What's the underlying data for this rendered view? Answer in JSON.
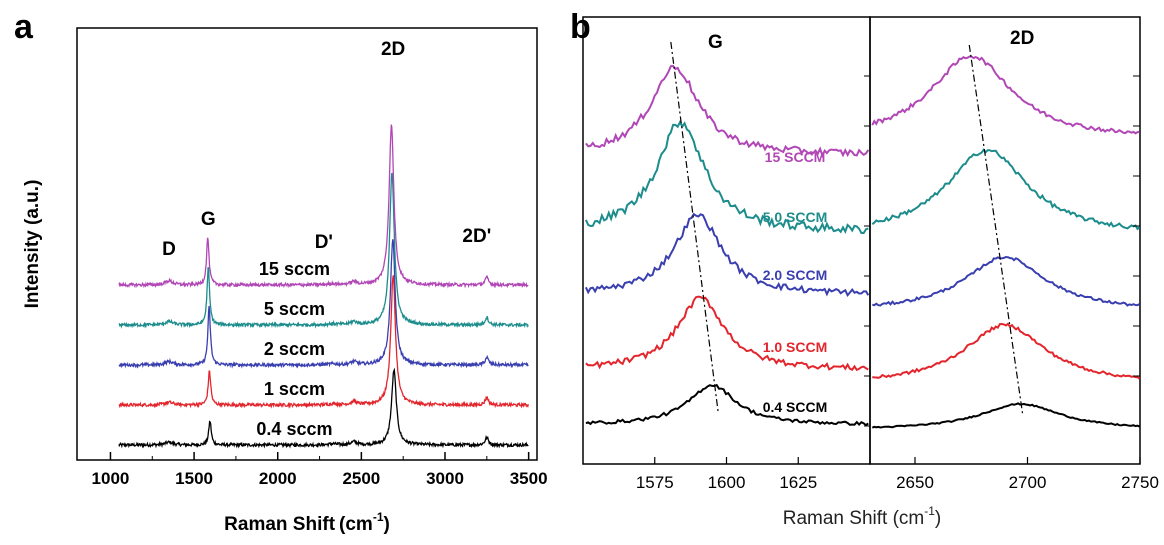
{
  "figure": {
    "panel_a_letter": "a",
    "panel_b_letter": "b"
  },
  "chart_data": [
    {
      "type": "line",
      "panel": "a",
      "xlabel": "Raman Shift",
      "xlabel_unit": "(cm",
      "xlabel_unit_sup": "-1",
      "xlabel_unit_close": ")",
      "ylabel": "Intensity (a.u.)",
      "xlim": [
        800,
        3550
      ],
      "x_ticks": [
        "1000",
        "1500",
        "2000",
        "2500",
        "3000",
        "3500"
      ],
      "x_tick_values": [
        1000,
        1500,
        2000,
        2500,
        3000,
        3500
      ],
      "y_ticks": "none",
      "grid": false,
      "peak_labels": [
        {
          "text": "D",
          "x": 1350
        },
        {
          "text": "G",
          "x": 1585
        },
        {
          "text": "D'",
          "x": 2455
        },
        {
          "text": "2D",
          "x": 2690
        },
        {
          "text": "2D'",
          "x": 3250
        }
      ],
      "series": [
        {
          "name": "15 sccm",
          "color": "#b147b6",
          "offset": 4,
          "G_intensity": 1.4,
          "G_pos": 1582,
          "TwoD_intensity": 4.7,
          "TwoD_pos": 2680,
          "D_intensity": 0.12
        },
        {
          "name": "5 sccm",
          "color": "#1d8c8c",
          "offset": 3,
          "G_intensity": 1.7,
          "G_pos": 1585,
          "TwoD_intensity": 4.5,
          "TwoD_pos": 2683,
          "D_intensity": 0.1
        },
        {
          "name": "2 sccm",
          "color": "#3a3fb0",
          "offset": 2,
          "G_intensity": 1.7,
          "G_pos": 1590,
          "TwoD_intensity": 3.7,
          "TwoD_pos": 2688,
          "D_intensity": 0.1
        },
        {
          "name": "1 sccm",
          "color": "#e3262d",
          "offset": 1,
          "G_intensity": 1.0,
          "G_pos": 1592,
          "TwoD_intensity": 3.8,
          "TwoD_pos": 2690,
          "D_intensity": 0.08
        },
        {
          "name": "0.4 sccm",
          "color": "#000000",
          "offset": 0,
          "G_intensity": 0.7,
          "G_pos": 1595,
          "TwoD_intensity": 2.2,
          "TwoD_pos": 2695,
          "D_intensity": 0.08
        }
      ]
    },
    {
      "type": "line",
      "panel": "b",
      "xlabel": "Raman Shift (cm",
      "xlabel_sup": "-1",
      "xlabel_close": ")",
      "subpanels": [
        {
          "peak_label": "G",
          "xlim": [
            1550,
            1650
          ],
          "x_ticks": [
            "1575",
            "1600",
            "1625"
          ],
          "x_tick_values": [
            1575,
            1600,
            1625
          ]
        },
        {
          "peak_label": "2D",
          "xlim": [
            2630,
            2750
          ],
          "x_ticks": [
            "2650",
            "2700",
            "2750"
          ],
          "x_tick_values": [
            2650,
            2700,
            2750
          ]
        }
      ],
      "series": [
        {
          "name": "15  SCCM",
          "color": "#b147b6",
          "G_peak": 1582,
          "TwoD_peak": 2675
        },
        {
          "name": "5.0 SCCM",
          "color": "#1d8c8c",
          "G_peak": 1584,
          "TwoD_peak": 2682
        },
        {
          "name": "2.0 SCCM",
          "color": "#3a3fb0",
          "G_peak": 1590,
          "TwoD_peak": 2690
        },
        {
          "name": "1.0 SCCM",
          "color": "#e3262d",
          "G_peak": 1591,
          "TwoD_peak": 2690
        },
        {
          "name": "0.4 SCCM",
          "color": "#000000",
          "G_peak": 1595,
          "TwoD_peak": 2697
        }
      ]
    }
  ]
}
